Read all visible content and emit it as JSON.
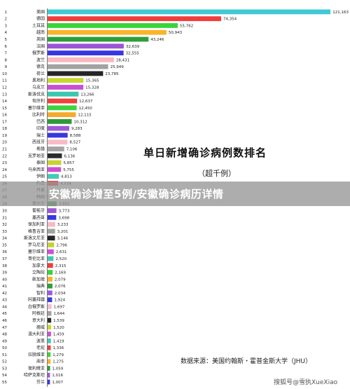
{
  "chart_data": {
    "type": "bar",
    "orientation": "horizontal",
    "title": "单日新增确诊病例数排名",
    "subtitle": "（超千例）",
    "source": "数据来源：美国约翰斯・霍普金斯大学（JHU）",
    "categories": [
      "美国",
      "德国",
      "土耳其",
      "越南",
      "英国",
      "法国",
      "俄罗斯",
      "波兰",
      "德克",
      "荷兰",
      "奥地利",
      "乌克兰",
      "斯洛伐克",
      "匈牙利",
      "塞尔维亚",
      "比利时",
      "巴西",
      "印度",
      "瑞士",
      "西班牙",
      "希腊",
      "克罗地亚",
      "泰国",
      "马来西亚",
      "伊朗",
      "约旦",
      "丹麦",
      "韩国",
      "爱尔兰",
      "葡萄牙",
      "墨西哥",
      "保加利亚",
      "格鲁吉亚",
      "斯洛文尼亚",
      "罗马尼亚",
      "塞尔维亚",
      "哥伦比亚",
      "加拿大",
      "立陶宛",
      "新加坡",
      "瑞典",
      "智利",
      "阿塞拜疆",
      "白俄罗斯",
      "阿根廷",
      "意大利",
      "挪威",
      "澳大利亚",
      "波黑",
      "老挝",
      "拉脱维亚",
      "南非",
      "玻利维亚",
      "哈萨克斯坦",
      "芬兰"
    ],
    "values": [
      121163,
      74354,
      55762,
      50943,
      43246,
      32639,
      32555,
      28431,
      25949,
      23785,
      15365,
      15328,
      13266,
      12637,
      12450,
      12115,
      10312,
      9283,
      8588,
      8527,
      7106,
      6136,
      5857,
      5755,
      4813,
      4534,
      4,
      4,
      3891,
      3773,
      3698,
      3233,
      3201,
      3146,
      2796,
      2631,
      2520,
      2315,
      2169,
      2079,
      2076,
      2034,
      1924,
      1697,
      1644,
      1539,
      1520,
      1459,
      1419,
      1336,
      1279,
      1275,
      1059,
      1016,
      1007
    ],
    "value_labels": [
      "121,163",
      "74,354",
      "55,762",
      "50,943",
      "43,246",
      "32,639",
      "32,555",
      "28,431",
      "25,949",
      "23,785",
      "15,365",
      "15,328",
      "13,266",
      "12,637",
      "12,450",
      "12,115",
      "10,312",
      "9,283",
      "8,588",
      "8,527",
      "7,106",
      "6,136",
      "5,857",
      "5,755",
      "4,813",
      "4,534",
      "4",
      "4",
      "3,891",
      "3,773",
      "3,698",
      "3,233",
      "3,201",
      "3,146",
      "2,796",
      "2,631",
      "2,520",
      "2,315",
      "2,169",
      "2,079",
      "2,076",
      "2,034",
      "1,924",
      "1,697",
      "1,644",
      "1,539",
      "1,520",
      "1,459",
      "1,419",
      "1,336",
      "1,279",
      "1,275",
      "1,059",
      "1,016",
      "1,007"
    ],
    "colors": [
      "#3ec9d6",
      "#f23c3c",
      "#39d43a",
      "#f7b52a",
      "#2f9e3a",
      "#9b55d6",
      "#3737e0",
      "#f7b8c4",
      "#a2a2a2",
      "#262626",
      "#c8d630",
      "#c94fd0",
      "#3cc7b0",
      "#f2403a",
      "#3fd23f",
      "#f7aa2a",
      "#2d9a38",
      "#9f59d8",
      "#3838e0",
      "#f7bcc8",
      "#a4a4a4",
      "#2c2c2c",
      "#c8d232",
      "#cf4fcf",
      "#45c9b8",
      "#f23e3e",
      "#f7b12a",
      "#f23e3e",
      "#2f9a3a",
      "#a055d6",
      "#3737e0",
      "#f7b8c4",
      "#a2a2a2",
      "#262626",
      "#c5d22f",
      "#d14fd2",
      "#3fc7b4",
      "#f23c3c",
      "#3ad43a",
      "#f7b22a",
      "#2f9e3a",
      "#9e58d8",
      "#3838e0",
      "#f7bccb",
      "#a2a2a2",
      "#2a2a2a",
      "#c8d630",
      "#cf4fcf",
      "#41c8b6",
      "#f23e3e",
      "#3cd43c",
      "#f7b12a",
      "#2f9a3a",
      "#a055d6",
      "#3737e0"
    ]
  },
  "banner": {
    "text": "安徽确诊增至5例/安徽确诊病历详情"
  },
  "watermark": "搜狐号@雪执XueXiao"
}
